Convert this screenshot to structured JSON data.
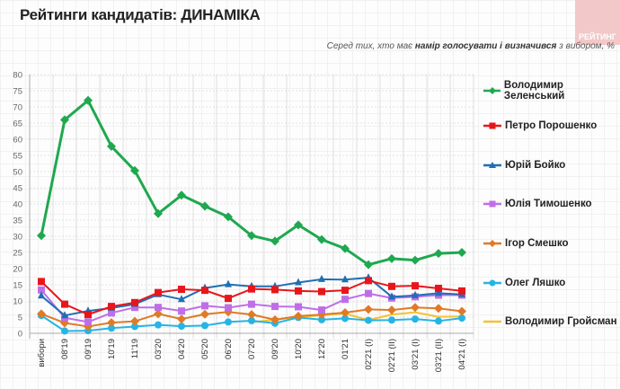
{
  "header": {
    "title": "Рейтинги кандидатів: ДИНАМІКА",
    "logo_text": "РЕЙТИНГ",
    "subtitle_pre": "Серед тих, хто має ",
    "subtitle_bold": "намір голосувати і визначився",
    "subtitle_post": " з вибором, %"
  },
  "chart_data": {
    "type": "line",
    "ylim": [
      0,
      80
    ],
    "yticks": [
      0,
      5,
      10,
      15,
      20,
      25,
      30,
      35,
      40,
      45,
      50,
      55,
      60,
      65,
      70,
      75,
      80
    ],
    "grid": true,
    "legend": "right",
    "categories": [
      "вибори",
      "08'19",
      "09'19",
      "10'19",
      "11'19",
      "03'20",
      "04'20",
      "05'20",
      "06'20",
      "07'20",
      "09'20",
      "10'20",
      "12'20",
      "01'21",
      "02'21 (I)",
      "02'21 (II)",
      "03'21 (I)",
      "03'21 (II)",
      "04'21 (I)"
    ],
    "series": [
      {
        "name": "Володимир Зеленський",
        "color": "#1fa84f",
        "marker": "diamond",
        "values": [
          30.2,
          66,
          72,
          57.8,
          50.3,
          37,
          42.7,
          39.3,
          36,
          30.2,
          28.5,
          33.5,
          29,
          26.2,
          21.2,
          23.1,
          22.6,
          24.7,
          25
        ]
      },
      {
        "name": "Петро Порошенко",
        "color": "#e8161b",
        "marker": "square",
        "values": [
          16,
          9,
          5.8,
          8.3,
          9.5,
          12.6,
          13.6,
          13.3,
          10.8,
          13.7,
          13.5,
          13.1,
          12.9,
          13.3,
          16.3,
          14.5,
          14.7,
          13.9,
          13.1
        ]
      },
      {
        "name": "Юрій Бойко",
        "color": "#1f6fb5",
        "marker": "triangle",
        "values": [
          11.6,
          5.5,
          6.9,
          7.8,
          9,
          12,
          10.5,
          14,
          15.1,
          14.5,
          14.5,
          15.7,
          16.7,
          16.6,
          17.2,
          11.3,
          11.7,
          12.4,
          12
        ]
      },
      {
        "name": "Юлія Тимошенко",
        "color": "#c06ee8",
        "marker": "square",
        "values": [
          13.4,
          4.8,
          3.5,
          6.3,
          8,
          8,
          6.9,
          8.5,
          7.9,
          9,
          8.3,
          8.2,
          7.2,
          10.5,
          12.3,
          10.9,
          11.3,
          11.8,
          11.8
        ]
      },
      {
        "name": "Ігор Смешко",
        "color": "#e07a26",
        "marker": "diamond",
        "values": [
          6,
          3.2,
          2.1,
          3.3,
          3.7,
          6,
          4.4,
          5.9,
          6.6,
          5.8,
          4.2,
          5.3,
          5.8,
          6.4,
          7.4,
          7.2,
          8,
          7.7,
          6.8
        ]
      },
      {
        "name": "Олег Ляшко",
        "color": "#26b4e6",
        "marker": "circle",
        "values": [
          5.5,
          0.7,
          0.8,
          1.6,
          2.1,
          2.6,
          2.2,
          2.4,
          3.5,
          3.9,
          3.1,
          4.9,
          4.2,
          4.6,
          4,
          4.1,
          4.4,
          3.8,
          4.7
        ]
      },
      {
        "name": "Володимир Гройсман",
        "color": "#f5c230",
        "marker": "none",
        "values": [
          null,
          null,
          null,
          null,
          null,
          null,
          null,
          null,
          null,
          3.4,
          4.2,
          5,
          5.6,
          6.1,
          4.1,
          5.8,
          6.5,
          5.1,
          5.2
        ]
      }
    ]
  }
}
